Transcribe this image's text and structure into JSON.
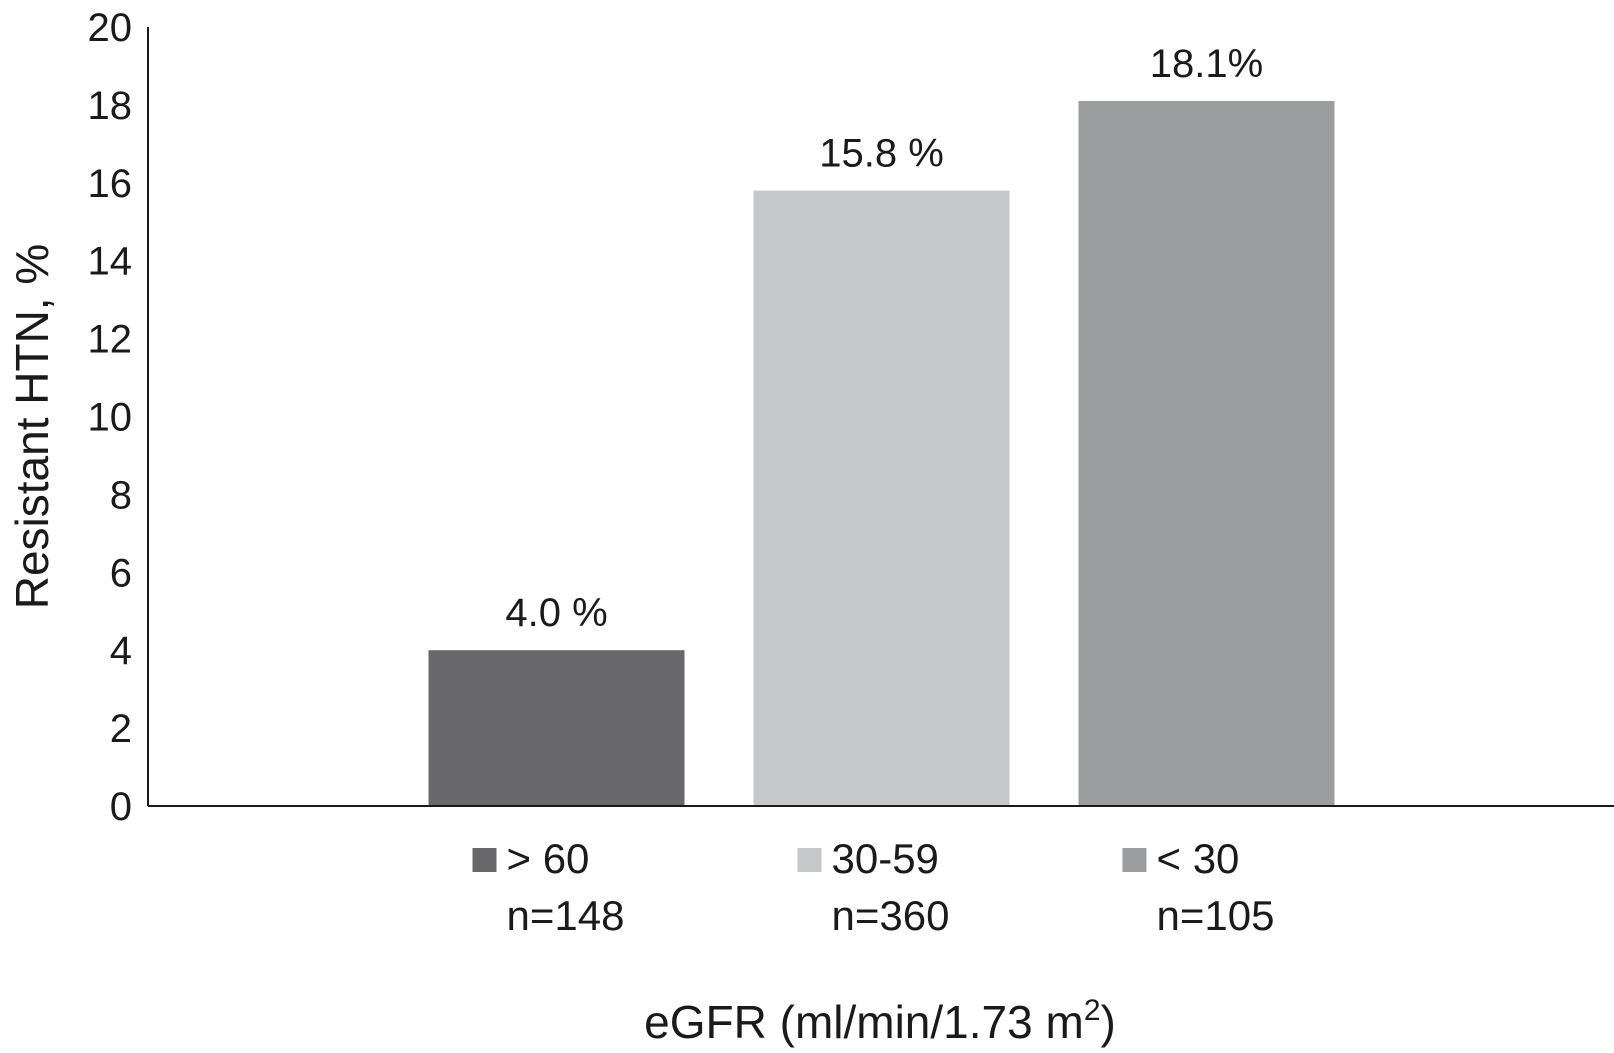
{
  "chart_data": {
    "type": "bar",
    "categories": [
      "> 60",
      "30-59",
      "< 30"
    ],
    "sample_sizes": [
      "n=148",
      "n=360",
      "n=105"
    ],
    "values": [
      4.0,
      15.8,
      18.1
    ],
    "data_labels": [
      "4.0 %",
      "15.8 %",
      "18.1%"
    ],
    "bar_colors": [
      "#68686a",
      "#c6c7c8",
      "#9c9d9f"
    ],
    "ylabel": "Resistant HTN, %",
    "xlabel": "eGFR (ml/min/1.73 m",
    "xlabel_superscript": "2",
    "xlabel_close": ")",
    "ylim": [
      0,
      20
    ],
    "yticks": [
      "0",
      "2",
      "4",
      "6",
      "8",
      "10",
      "12",
      "14",
      "16",
      "18",
      "20"
    ],
    "grid": false,
    "legend": "below-axis"
  }
}
